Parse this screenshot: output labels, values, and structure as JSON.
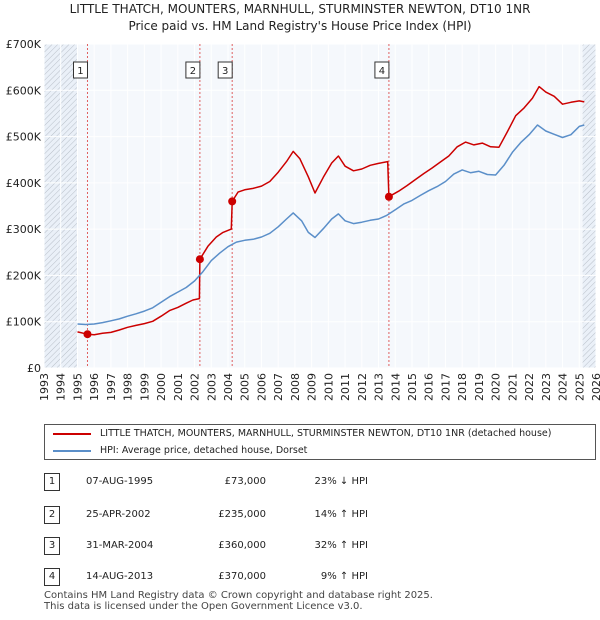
{
  "title_line1": "LITTLE THATCH, MOUNTERS, MARNHULL, STURMINSTER NEWTON, DT10 1NR",
  "title_line2": "Price paid vs. HM Land Registry's House Price Index (HPI)",
  "chart_data": {
    "type": "line",
    "xlim": [
      1993.0,
      2026.0
    ],
    "ylim": [
      0,
      700000
    ],
    "yticks": [
      {
        "value": 0,
        "label": "£0"
      },
      {
        "value": 100000,
        "label": "£100K"
      },
      {
        "value": 200000,
        "label": "£200K"
      },
      {
        "value": 300000,
        "label": "£300K"
      },
      {
        "value": 400000,
        "label": "£400K"
      },
      {
        "value": 500000,
        "label": "£500K"
      },
      {
        "value": 600000,
        "label": "£600K"
      },
      {
        "value": 700000,
        "label": "£700K"
      }
    ],
    "xticks": [
      "1993",
      "1994",
      "1995",
      "1996",
      "1997",
      "1998",
      "1999",
      "2000",
      "2001",
      "2002",
      "2003",
      "2004",
      "2005",
      "2006",
      "2007",
      "2008",
      "2009",
      "2010",
      "2011",
      "2012",
      "2013",
      "2014",
      "2015",
      "2016",
      "2017",
      "2018",
      "2019",
      "2020",
      "2021",
      "2022",
      "2023",
      "2024",
      "2025",
      "2026"
    ],
    "data_range": [
      1995.0,
      2025.3
    ],
    "series": [
      {
        "name": "LITTLE THATCH, MOUNTERS, MARNHULL, STURMINSTER NEWTON, DT10 1NR (detached house)",
        "color": "#cc0000",
        "points": [
          [
            1995.0,
            78000
          ],
          [
            1995.6,
            73000
          ],
          [
            1996.0,
            72000
          ],
          [
            1996.5,
            75000
          ],
          [
            1997.0,
            77000
          ],
          [
            1997.5,
            82000
          ],
          [
            1998.0,
            88000
          ],
          [
            1998.5,
            92000
          ],
          [
            1999.0,
            96000
          ],
          [
            1999.5,
            101000
          ],
          [
            2000.0,
            112000
          ],
          [
            2000.5,
            124000
          ],
          [
            2001.0,
            131000
          ],
          [
            2001.5,
            140000
          ],
          [
            2001.9,
            147000
          ],
          [
            2002.29,
            150000
          ],
          [
            2002.32,
            235000
          ],
          [
            2002.8,
            263000
          ],
          [
            2003.3,
            283000
          ],
          [
            2003.7,
            293000
          ],
          [
            2004.2,
            300000
          ],
          [
            2004.25,
            360000
          ],
          [
            2004.6,
            380000
          ],
          [
            2005.0,
            385000
          ],
          [
            2005.5,
            388000
          ],
          [
            2006.0,
            393000
          ],
          [
            2006.5,
            403000
          ],
          [
            2007.0,
            423000
          ],
          [
            2007.5,
            446000
          ],
          [
            2007.9,
            468000
          ],
          [
            2008.3,
            452000
          ],
          [
            2008.8,
            413000
          ],
          [
            2009.2,
            378000
          ],
          [
            2009.7,
            412000
          ],
          [
            2010.2,
            443000
          ],
          [
            2010.6,
            458000
          ],
          [
            2011.0,
            436000
          ],
          [
            2011.5,
            426000
          ],
          [
            2012.0,
            430000
          ],
          [
            2012.5,
            438000
          ],
          [
            2013.0,
            442000
          ],
          [
            2013.55,
            446000
          ],
          [
            2013.62,
            370000
          ],
          [
            2014.2,
            382000
          ],
          [
            2014.7,
            394000
          ],
          [
            2015.2,
            407000
          ],
          [
            2015.7,
            420000
          ],
          [
            2016.2,
            432000
          ],
          [
            2016.7,
            445000
          ],
          [
            2017.2,
            458000
          ],
          [
            2017.7,
            478000
          ],
          [
            2018.2,
            488000
          ],
          [
            2018.7,
            482000
          ],
          [
            2019.2,
            486000
          ],
          [
            2019.7,
            478000
          ],
          [
            2020.2,
            477000
          ],
          [
            2020.7,
            510000
          ],
          [
            2021.2,
            545000
          ],
          [
            2021.7,
            562000
          ],
          [
            2022.2,
            583000
          ],
          [
            2022.6,
            608000
          ],
          [
            2023.0,
            596000
          ],
          [
            2023.5,
            587000
          ],
          [
            2024.0,
            570000
          ],
          [
            2024.5,
            574000
          ],
          [
            2025.0,
            577000
          ],
          [
            2025.3,
            575000
          ]
        ]
      },
      {
        "name": "HPI: Average price, detached house, Dorset",
        "color": "#5b8fc9",
        "points": [
          [
            1995.0,
            95000
          ],
          [
            1995.5,
            94000
          ],
          [
            1996.0,
            95000
          ],
          [
            1996.5,
            98000
          ],
          [
            1997.0,
            102000
          ],
          [
            1997.5,
            106000
          ],
          [
            1998.0,
            112000
          ],
          [
            1998.5,
            117000
          ],
          [
            1999.0,
            123000
          ],
          [
            1999.5,
            130000
          ],
          [
            2000.0,
            142000
          ],
          [
            2000.5,
            154000
          ],
          [
            2001.0,
            164000
          ],
          [
            2001.5,
            174000
          ],
          [
            2002.0,
            188000
          ],
          [
            2002.5,
            208000
          ],
          [
            2003.0,
            232000
          ],
          [
            2003.5,
            248000
          ],
          [
            2004.0,
            262000
          ],
          [
            2004.5,
            272000
          ],
          [
            2005.0,
            276000
          ],
          [
            2005.5,
            278000
          ],
          [
            2006.0,
            283000
          ],
          [
            2006.5,
            291000
          ],
          [
            2007.0,
            305000
          ],
          [
            2007.5,
            322000
          ],
          [
            2007.9,
            335000
          ],
          [
            2008.4,
            318000
          ],
          [
            2008.8,
            293000
          ],
          [
            2009.2,
            282000
          ],
          [
            2009.7,
            301000
          ],
          [
            2010.2,
            322000
          ],
          [
            2010.6,
            333000
          ],
          [
            2011.0,
            318000
          ],
          [
            2011.5,
            312000
          ],
          [
            2012.0,
            315000
          ],
          [
            2012.5,
            319000
          ],
          [
            2013.0,
            322000
          ],
          [
            2013.5,
            330000
          ],
          [
            2014.0,
            342000
          ],
          [
            2014.5,
            354000
          ],
          [
            2015.0,
            362000
          ],
          [
            2015.5,
            373000
          ],
          [
            2016.0,
            383000
          ],
          [
            2016.5,
            392000
          ],
          [
            2017.0,
            403000
          ],
          [
            2017.5,
            419000
          ],
          [
            2018.0,
            428000
          ],
          [
            2018.5,
            422000
          ],
          [
            2019.0,
            425000
          ],
          [
            2019.5,
            418000
          ],
          [
            2020.0,
            417000
          ],
          [
            2020.5,
            438000
          ],
          [
            2021.0,
            466000
          ],
          [
            2021.5,
            487000
          ],
          [
            2022.0,
            504000
          ],
          [
            2022.5,
            525000
          ],
          [
            2023.0,
            512000
          ],
          [
            2023.5,
            505000
          ],
          [
            2024.0,
            498000
          ],
          [
            2024.5,
            504000
          ],
          [
            2025.0,
            522000
          ],
          [
            2025.3,
            525000
          ]
        ]
      }
    ],
    "sales": [
      {
        "id": "1",
        "x": 1995.6,
        "price": 73000
      },
      {
        "id": "2",
        "x": 2002.32,
        "price": 235000
      },
      {
        "id": "3",
        "x": 2004.25,
        "price": 360000
      },
      {
        "id": "4",
        "x": 2013.62,
        "price": 370000
      }
    ],
    "shaded_before": 1995.0,
    "shaded_after": 2025.2
  },
  "legend": {
    "red_label": "LITTLE THATCH, MOUNTERS, MARNHULL, STURMINSTER NEWTON, DT10 1NR (detached house)",
    "blue_label": "HPI: Average price, detached house, Dorset",
    "red_color": "#cc0000",
    "blue_color": "#5b8fc9"
  },
  "transactions": [
    {
      "num": "1",
      "date": "07-AUG-1995",
      "price": "£73,000",
      "hpi": "23% ↓ HPI"
    },
    {
      "num": "2",
      "date": "25-APR-2002",
      "price": "£235,000",
      "hpi": "14% ↑ HPI"
    },
    {
      "num": "3",
      "date": "31-MAR-2004",
      "price": "£360,000",
      "hpi": "32% ↑ HPI"
    },
    {
      "num": "4",
      "date": "14-AUG-2013",
      "price": "£370,000",
      "hpi": "9% ↑ HPI"
    }
  ],
  "footer_line1": "Contains HM Land Registry data © Crown copyright and database right 2025.",
  "footer_line2": "This data is licensed under the Open Government Licence v3.0."
}
